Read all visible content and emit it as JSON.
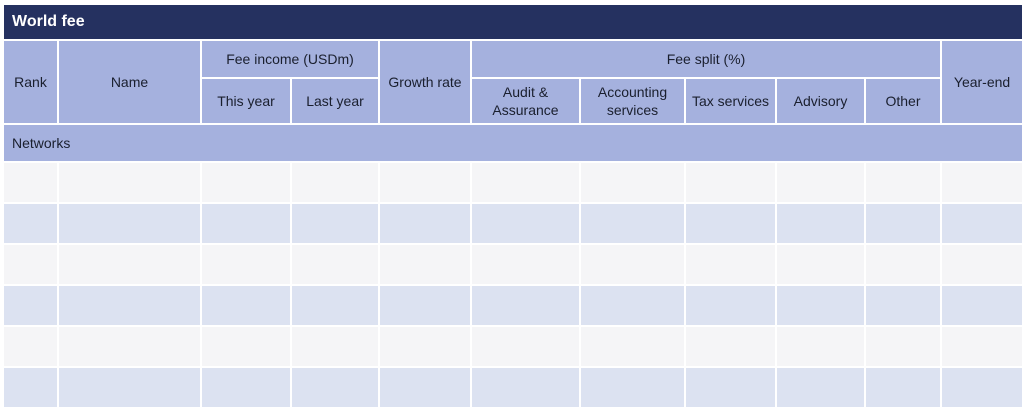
{
  "title": "World fee",
  "table": {
    "section_label": "Networks",
    "columns": {
      "rank": "Rank",
      "name": "Name",
      "fee_income_group": "Fee income (USDm)",
      "this_year": "This year",
      "last_year": "Last year",
      "growth_rate": "Growth rate",
      "fee_split_group": "Fee split (%)",
      "audit_assurance": "Audit & Assurance",
      "accounting_services": "Accounting services",
      "tax_services": "Tax services",
      "advisory": "Advisory",
      "other": "Other",
      "year_end": "Year-end"
    },
    "rows": [
      [
        "",
        "",
        "",
        "",
        "",
        "",
        "",
        "",
        "",
        "",
        ""
      ],
      [
        "",
        "",
        "",
        "",
        "",
        "",
        "",
        "",
        "",
        "",
        ""
      ],
      [
        "",
        "",
        "",
        "",
        "",
        "",
        "",
        "",
        "",
        "",
        ""
      ],
      [
        "",
        "",
        "",
        "",
        "",
        "",
        "",
        "",
        "",
        "",
        ""
      ],
      [
        "",
        "",
        "",
        "",
        "",
        "",
        "",
        "",
        "",
        "",
        ""
      ],
      [
        "",
        "",
        "",
        "",
        "",
        "",
        "",
        "",
        "",
        "",
        ""
      ]
    ]
  },
  "colors": {
    "navy": "#253160",
    "header_blue": "#a5b1de",
    "row_light": "#f5f5f7",
    "row_alt": "#dce2f1",
    "text": "#1a1f2e",
    "title_text": "#ffffff"
  }
}
